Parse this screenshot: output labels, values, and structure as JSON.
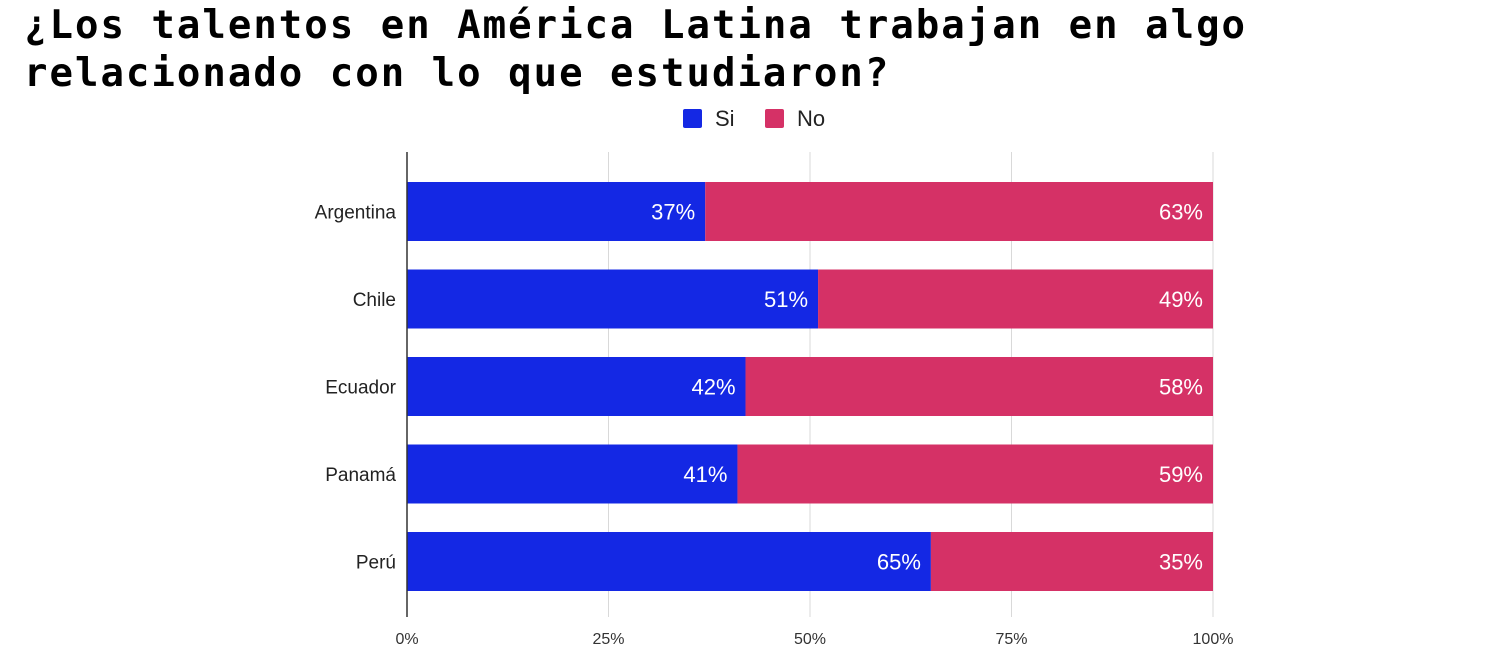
{
  "chart_data": {
    "type": "bar",
    "orientation": "horizontal",
    "stacked": true,
    "title": "¿Los talentos en América Latina trabajan en algo relacionado con lo que estudiaron?",
    "categories": [
      "Argentina",
      "Chile",
      "Ecuador",
      "Panamá",
      "Perú"
    ],
    "series": [
      {
        "name": "Si",
        "color": "#1428e4",
        "values": [
          37,
          51,
          42,
          41,
          65
        ],
        "labels": [
          "37%",
          "51%",
          "42%",
          "41%",
          "65%"
        ]
      },
      {
        "name": "No",
        "color": "#d53166",
        "values": [
          63,
          49,
          58,
          59,
          35
        ],
        "labels": [
          "63%",
          "49%",
          "58%",
          "59%",
          "35%"
        ]
      }
    ],
    "xlim": [
      0,
      100
    ],
    "xticks": [
      "0%",
      "25%",
      "50%",
      "75%",
      "100%"
    ],
    "xlabel": "",
    "ylabel": "",
    "legend": "top-center",
    "grid": true
  }
}
